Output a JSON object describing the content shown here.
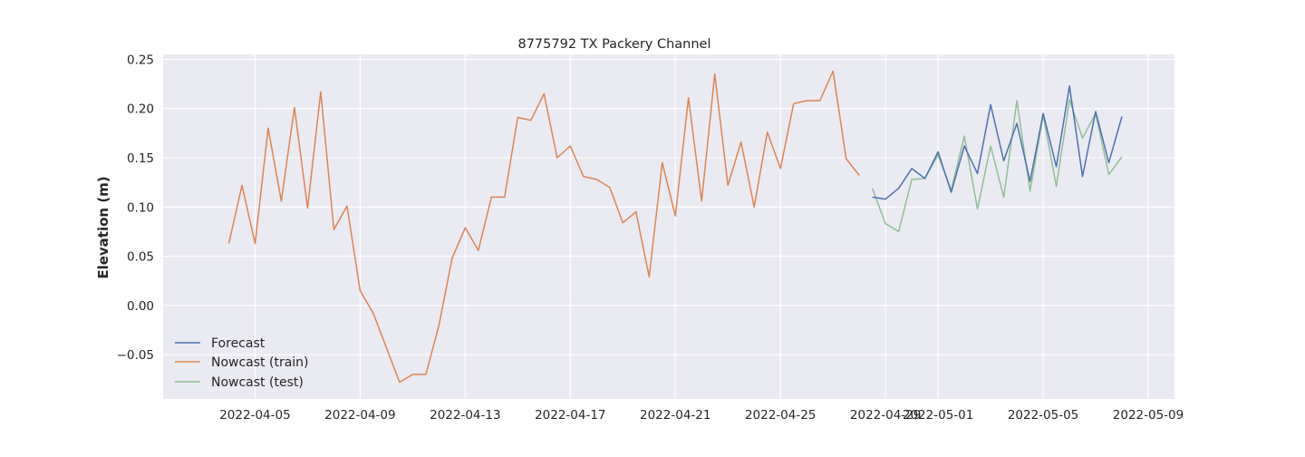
{
  "chart_data": {
    "type": "line",
    "title": "8775792 TX Packery Channel",
    "xlabel": "",
    "ylabel": "Elevation (m)",
    "grid": true,
    "legend_position": "lower-left",
    "xlim": [
      "2022-04-01T12:00",
      "2022-05-10T00:00"
    ],
    "ylim": [
      -0.095,
      0.255
    ],
    "x_ticks": [
      "2022-04-05",
      "2022-04-09",
      "2022-04-13",
      "2022-04-17",
      "2022-04-21",
      "2022-04-25",
      "2022-04-29",
      "2022-05-01",
      "2022-05-05",
      "2022-05-09"
    ],
    "y_ticks": [
      -0.05,
      0.0,
      0.05,
      0.1,
      0.15,
      0.2,
      0.25
    ],
    "y_tick_labels": [
      "−0.05",
      "0.00",
      "0.05",
      "0.10",
      "0.15",
      "0.20",
      "0.25"
    ],
    "series": [
      {
        "name": "Forecast",
        "color": "#4c72b0",
        "x": [
          "2022-04-28T12:00",
          "2022-04-29",
          "2022-04-29T12:00",
          "2022-04-30",
          "2022-04-30T12:00",
          "2022-05-01",
          "2022-05-01T12:00",
          "2022-05-02",
          "2022-05-02T12:00",
          "2022-05-03",
          "2022-05-03T12:00",
          "2022-05-04",
          "2022-05-04T12:00",
          "2022-05-05",
          "2022-05-05T12:00",
          "2022-05-06",
          "2022-05-06T12:00",
          "2022-05-07",
          "2022-05-07T12:00",
          "2022-05-08"
        ],
        "y": [
          0.11,
          0.108,
          0.119,
          0.139,
          0.129,
          0.156,
          0.115,
          0.162,
          0.134,
          0.204,
          0.147,
          0.185,
          0.126,
          0.195,
          0.141,
          0.223,
          0.131,
          0.197,
          0.145,
          0.192
        ]
      },
      {
        "name": "Nowcast (train)",
        "color": "#dd8452",
        "x": [
          "2022-04-04",
          "2022-04-04T12:00",
          "2022-04-05",
          "2022-04-05T12:00",
          "2022-04-06",
          "2022-04-06T12:00",
          "2022-04-07",
          "2022-04-07T12:00",
          "2022-04-08",
          "2022-04-08T12:00",
          "2022-04-09",
          "2022-04-09T12:00",
          "2022-04-10",
          "2022-04-10T12:00",
          "2022-04-11",
          "2022-04-11T12:00",
          "2022-04-12",
          "2022-04-12T12:00",
          "2022-04-13",
          "2022-04-13T12:00",
          "2022-04-14",
          "2022-04-14T12:00",
          "2022-04-15",
          "2022-04-15T12:00",
          "2022-04-16",
          "2022-04-16T12:00",
          "2022-04-17",
          "2022-04-17T12:00",
          "2022-04-18",
          "2022-04-18T12:00",
          "2022-04-19",
          "2022-04-19T12:00",
          "2022-04-20",
          "2022-04-20T12:00",
          "2022-04-21",
          "2022-04-21T12:00",
          "2022-04-22",
          "2022-04-22T12:00",
          "2022-04-23",
          "2022-04-23T12:00",
          "2022-04-24",
          "2022-04-24T12:00",
          "2022-04-25",
          "2022-04-25T12:00",
          "2022-04-26",
          "2022-04-26T12:00",
          "2022-04-27",
          "2022-04-27T12:00",
          "2022-04-28"
        ],
        "y": [
          0.063,
          0.122,
          0.063,
          0.18,
          0.106,
          0.201,
          0.099,
          0.217,
          0.077,
          0.101,
          0.015,
          -0.008,
          -0.043,
          -0.078,
          -0.07,
          -0.07,
          -0.02,
          0.048,
          0.079,
          0.056,
          0.11,
          0.11,
          0.191,
          0.188,
          0.215,
          0.15,
          0.162,
          0.131,
          0.128,
          0.12,
          0.084,
          0.095,
          0.029,
          0.145,
          0.091,
          0.211,
          0.106,
          0.235,
          0.122,
          0.166,
          0.1,
          0.176,
          0.139,
          0.205,
          0.208,
          0.208,
          0.238,
          0.149,
          0.132
        ]
      },
      {
        "name": "Nowcast (test)",
        "color": "#8fbf97",
        "x": [
          "2022-04-28T12:00",
          "2022-04-29",
          "2022-04-29T12:00",
          "2022-04-30",
          "2022-04-30T12:00",
          "2022-05-01",
          "2022-05-01T12:00",
          "2022-05-02",
          "2022-05-02T12:00",
          "2022-05-03",
          "2022-05-03T12:00",
          "2022-05-04",
          "2022-05-04T12:00",
          "2022-05-05",
          "2022-05-05T12:00",
          "2022-05-06",
          "2022-05-06T12:00",
          "2022-05-07",
          "2022-05-07T12:00",
          "2022-05-08"
        ],
        "y": [
          0.119,
          0.083,
          0.075,
          0.128,
          0.129,
          0.153,
          0.117,
          0.172,
          0.098,
          0.162,
          0.11,
          0.208,
          0.116,
          0.193,
          0.121,
          0.209,
          0.17,
          0.195,
          0.133,
          0.151
        ]
      }
    ]
  }
}
